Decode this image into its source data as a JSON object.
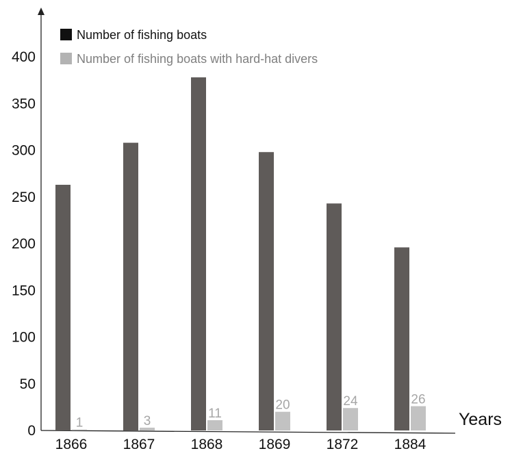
{
  "chart_data": {
    "type": "bar",
    "categories": [
      "1866",
      "1867",
      "1868",
      "1869",
      "1872",
      "1884"
    ],
    "series": [
      {
        "name": "Number of fishing boats",
        "values": [
          263,
          308,
          378,
          298,
          243,
          196
        ],
        "color": "#5f5b59"
      },
      {
        "name": "Number of fishing boats with hard-hat divers",
        "values": [
          1,
          3,
          11,
          20,
          24,
          26
        ],
        "color": "#c2c2c2"
      }
    ],
    "data_labels": {
      "series": 1,
      "values": [
        "1",
        "3",
        "11",
        "20",
        "24",
        "26"
      ],
      "color": "#a6a6a6"
    },
    "title": "",
    "xlabel": "Years",
    "ylabel": "",
    "ylim": [
      0,
      400
    ],
    "yticks": [
      0,
      50,
      100,
      150,
      200,
      250,
      300,
      350,
      400
    ],
    "grid": false,
    "legend_position": "top-left",
    "legend_swatch_colors": [
      "#111111",
      "#b3b3b3"
    ]
  }
}
